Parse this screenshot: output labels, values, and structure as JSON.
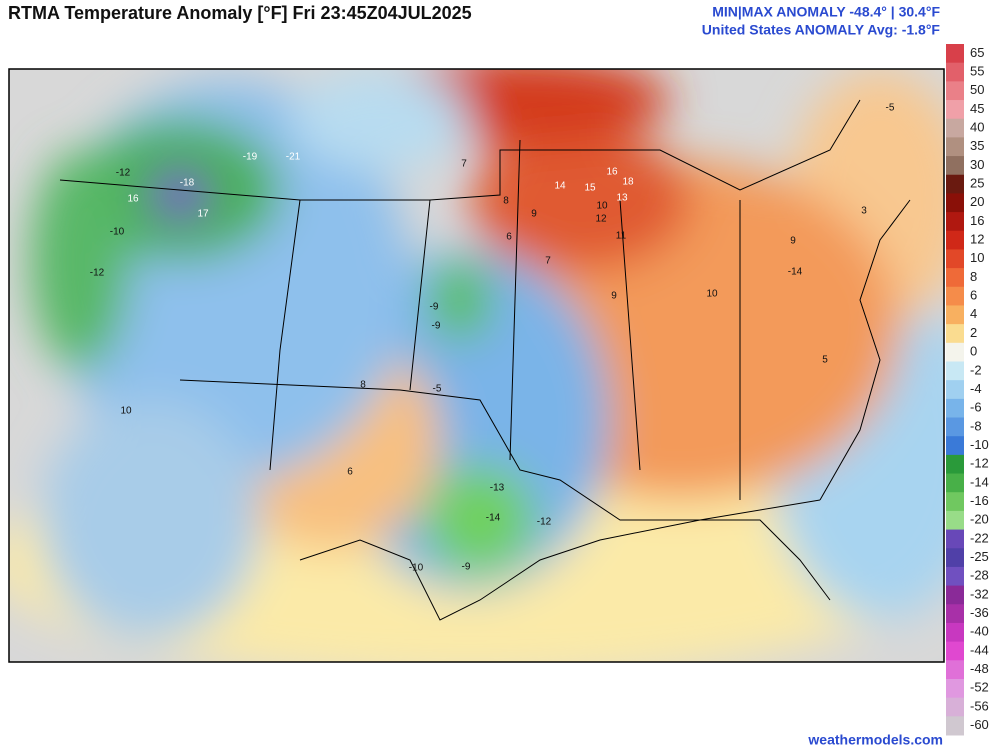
{
  "header": {
    "title": "RTMA Temperature Anomaly [°F]  Fri 23:45Z04JUL2025",
    "stats": "MIN|MAX ANOMALY -48.4°  |  30.4°F",
    "average": "United States ANOMALY Avg: -1.8°F"
  },
  "credit": "weathermodels.com",
  "colorbar": {
    "levels": [
      65,
      55,
      50,
      45,
      40,
      35,
      30,
      25,
      20,
      16,
      12,
      10,
      8,
      6,
      4,
      2,
      0,
      -2,
      -4,
      -6,
      -8,
      -10,
      -12,
      -14,
      -16,
      -20,
      -22,
      -25,
      -28,
      -32,
      -36,
      -40,
      -44,
      -48,
      -52,
      -56,
      -60
    ],
    "colors": [
      "#d8404a",
      "#e2606a",
      "#ea8088",
      "#f0a0a8",
      "#c8a8a0",
      "#b09080",
      "#907060",
      "#6a1a10",
      "#8a1008",
      "#b01810",
      "#d02818",
      "#e24828",
      "#ef6a38",
      "#f58c4a",
      "#f8b060",
      "#fadc90",
      "#f4f4ec",
      "#c8e8f4",
      "#a0d0f0",
      "#78b4ea",
      "#5a98e2",
      "#3a7ad8",
      "#2a9a3a",
      "#48b048",
      "#70c860",
      "#98dc88",
      "#6848b8",
      "#5040a8",
      "#7050c0",
      "#8a2a98",
      "#a830a8",
      "#c838c0",
      "#e048d0",
      "#e070d8",
      "#e098e0",
      "#d8b0d8",
      "#d0c8d0"
    ]
  },
  "map": {
    "stations": [
      14,
      15,
      18,
      16,
      13,
      10,
      12,
      11,
      9,
      8,
      7,
      9,
      10,
      9,
      -14,
      -9,
      -9,
      -13,
      -14,
      -12,
      -10,
      -9,
      16,
      17,
      -18,
      -19,
      -21,
      -12,
      -10,
      -12,
      10,
      6,
      8,
      -5,
      5,
      3,
      -5,
      7,
      6
    ]
  }
}
